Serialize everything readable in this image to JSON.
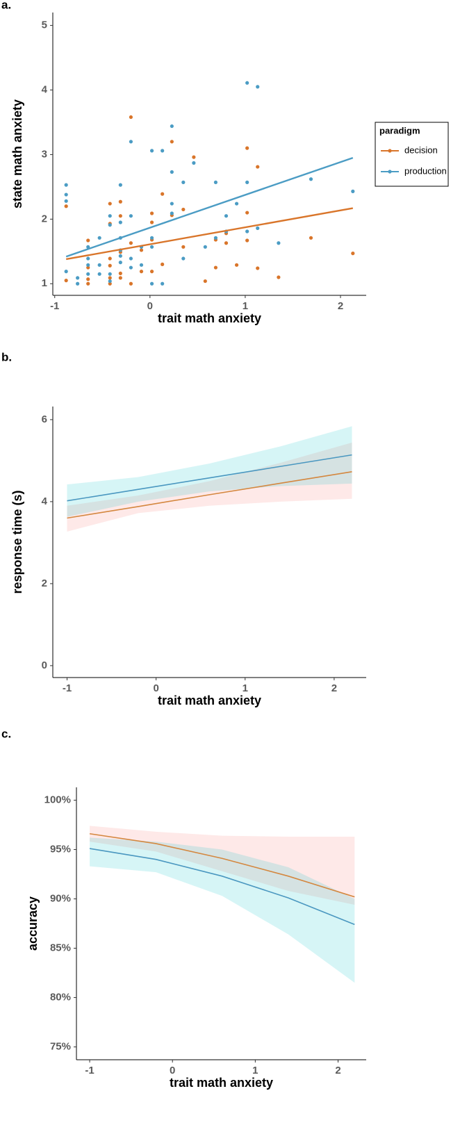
{
  "chart_data": [
    {
      "type": "scatter",
      "panel_label": "a.",
      "x_label": "trait math anxiety",
      "y_label": "state math anxiety",
      "xlim": [
        -1.02,
        2.27
      ],
      "ylim": [
        0.82,
        5.2
      ],
      "xticks": [
        -1,
        0,
        1,
        2
      ],
      "yticks": [
        1,
        2,
        3,
        4,
        5
      ],
      "legend_title": "paradigm",
      "legend": "right",
      "series": [
        {
          "name": "decision",
          "color": "#d9752a",
          "x": [
            -0.88,
            -0.88,
            -0.65,
            -0.65,
            -0.65,
            -0.65,
            -0.42,
            -0.42,
            -0.42,
            -0.42,
            -0.42,
            -0.42,
            -0.31,
            -0.31,
            -0.31,
            -0.31,
            -0.31,
            -0.2,
            -0.2,
            -0.2,
            -0.09,
            -0.09,
            0.02,
            0.02,
            0.02,
            0.02,
            0.13,
            0.13,
            0.23,
            0.23,
            0.35,
            0.35,
            0.46,
            0.58,
            0.69,
            0.69,
            0.8,
            0.8,
            0.91,
            1.02,
            1.02,
            1.02,
            1.13,
            1.13,
            1.35,
            1.69,
            2.13
          ],
          "values": [
            1.05,
            2.2,
            1.67,
            1.07,
            1.0,
            1.25,
            2.24,
            1.93,
            1.39,
            1.28,
            1.09,
            1.0,
            2.27,
            2.05,
            1.49,
            1.16,
            1.09,
            3.58,
            1.63,
            1.0,
            1.52,
            1.19,
            2.09,
            1.95,
            1.68,
            1.19,
            2.39,
            1.3,
            3.2,
            2.06,
            2.15,
            1.57,
            2.96,
            1.04,
            1.68,
            1.25,
            1.78,
            1.63,
            1.29,
            3.1,
            2.1,
            1.67,
            2.81,
            1.24,
            1.1,
            1.71,
            1.47
          ],
          "fit_x": [
            -0.88,
            2.13
          ],
          "fit_values": [
            1.38,
            2.17
          ]
        },
        {
          "name": "production",
          "color": "#4b9cc4",
          "x": [
            -0.88,
            -0.88,
            -0.88,
            -0.88,
            -0.76,
            -0.76,
            -0.65,
            -0.65,
            -0.65,
            -0.65,
            -0.53,
            -0.53,
            -0.53,
            -0.42,
            -0.42,
            -0.42,
            -0.42,
            -0.31,
            -0.31,
            -0.31,
            -0.31,
            -0.31,
            -0.31,
            -0.2,
            -0.2,
            -0.2,
            -0.2,
            -0.09,
            -0.09,
            0.02,
            0.02,
            0.02,
            0.02,
            0.13,
            0.13,
            0.23,
            0.23,
            0.23,
            0.23,
            0.35,
            0.35,
            0.46,
            0.58,
            0.69,
            0.69,
            0.8,
            0.8,
            0.91,
            1.02,
            1.02,
            1.02,
            1.13,
            1.13,
            1.35,
            1.69,
            2.13
          ],
          "values": [
            2.53,
            2.38,
            2.28,
            1.19,
            1.09,
            1.0,
            1.57,
            1.39,
            1.29,
            1.15,
            1.71,
            1.29,
            1.15,
            2.05,
            1.91,
            1.15,
            1.04,
            2.53,
            1.95,
            1.71,
            1.52,
            1.43,
            1.33,
            3.2,
            2.05,
            1.39,
            1.25,
            1.57,
            1.29,
            3.06,
            1.71,
            1.57,
            1.0,
            3.06,
            1.0,
            3.44,
            2.73,
            2.24,
            2.09,
            2.57,
            1.39,
            2.87,
            1.57,
            2.57,
            1.71,
            2.05,
            1.81,
            2.24,
            4.11,
            2.57,
            1.81,
            4.05,
            1.86,
            1.63,
            2.62,
            2.43
          ],
          "fit_x": [
            -0.88,
            2.13
          ],
          "fit_values": [
            1.42,
            2.95
          ]
        }
      ]
    },
    {
      "type": "line",
      "panel_label": "b.",
      "x_label": "trait math anxiety",
      "y_label": "response time (s)",
      "xlim": [
        -1.16,
        2.36
      ],
      "ylim": [
        -0.29,
        6.32
      ],
      "xticks": [
        -1,
        0,
        1,
        2
      ],
      "yticks": [
        0,
        2,
        4,
        6
      ],
      "x": [
        -1,
        -0.2,
        0.6,
        1.4,
        2.2
      ],
      "series": [
        {
          "color": "#d4873f",
          "band_color": "#f8766d",
          "values": [
            3.6,
            3.88,
            4.17,
            4.45,
            4.73
          ],
          "lower": [
            3.27,
            3.72,
            3.9,
            4.0,
            4.07
          ],
          "upper": [
            3.9,
            4.15,
            4.5,
            4.95,
            5.44
          ]
        },
        {
          "color": "#4a97c0",
          "band_color": "#00bfc4",
          "values": [
            4.02,
            4.3,
            4.58,
            4.86,
            5.14
          ],
          "lower": [
            3.63,
            4.0,
            4.25,
            4.38,
            4.44
          ],
          "upper": [
            4.42,
            4.6,
            4.93,
            5.35,
            5.84
          ]
        }
      ]
    },
    {
      "type": "line",
      "panel_label": "c.",
      "x_label": "trait math anxiety",
      "y_label": "accuracy",
      "xlim": [
        -1.16,
        2.34
      ],
      "ylim": [
        73.7,
        101.3
      ],
      "xticks": [
        -1,
        0,
        1,
        2
      ],
      "yticks": [
        {
          "value": 75,
          "label": "75%"
        },
        {
          "value": 80,
          "label": "80%"
        },
        {
          "value": 85,
          "label": "85%"
        },
        {
          "value": 90,
          "label": "90%"
        },
        {
          "value": 95,
          "label": "95%"
        },
        {
          "value": 100,
          "label": "100%"
        }
      ],
      "x": [
        -1,
        -0.2,
        0.6,
        1.4,
        2.2
      ],
      "series": [
        {
          "color": "#d4873f",
          "band_color": "#f8766d",
          "values": [
            96.6,
            95.6,
            94.1,
            92.3,
            90.2
          ],
          "lower": [
            95.8,
            94.8,
            92.8,
            90.8,
            89.4
          ],
          "upper": [
            97.4,
            96.8,
            96.4,
            96.3,
            96.3
          ]
        },
        {
          "color": "#4a97c0",
          "band_color": "#00bfc4",
          "values": [
            95.1,
            94.0,
            92.3,
            90.1,
            87.4
          ],
          "lower": [
            93.3,
            92.7,
            90.3,
            86.4,
            81.5
          ],
          "upper": [
            96.2,
            95.8,
            95.0,
            93.2,
            90.0
          ]
        }
      ]
    }
  ]
}
